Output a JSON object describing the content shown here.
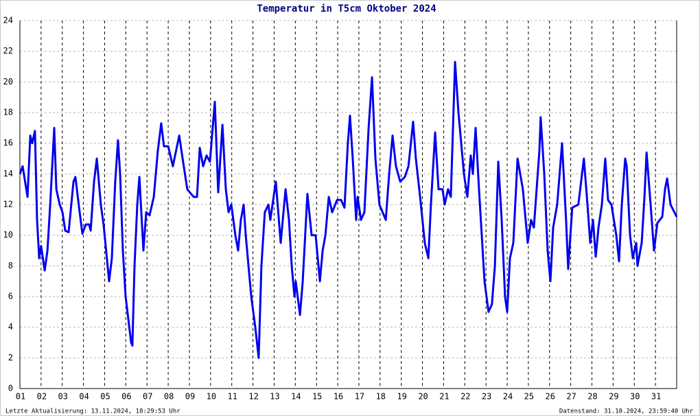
{
  "chart_data": {
    "type": "line",
    "title": "Temperatur in T5cm Oktober 2024",
    "footer_left": "Letzte Aktualisierung: 13.11.2024, 18:29:53 Uhr",
    "footer_right": "Datenstand: 31.10.2024, 23:59:40 Uhr",
    "xlim": [
      1,
      32
    ],
    "ylim": [
      0,
      24
    ],
    "grid": true,
    "yticks": [
      0,
      2,
      4,
      6,
      8,
      10,
      12,
      14,
      16,
      18,
      20,
      22,
      24
    ],
    "xticks": [
      {
        "value": 1,
        "label": "01"
      },
      {
        "value": 2,
        "label": "02"
      },
      {
        "value": 3,
        "label": "03"
      },
      {
        "value": 4,
        "label": "04"
      },
      {
        "value": 5,
        "label": "05"
      },
      {
        "value": 6,
        "label": "06"
      },
      {
        "value": 7,
        "label": "07"
      },
      {
        "value": 8,
        "label": "08"
      },
      {
        "value": 9,
        "label": "09"
      },
      {
        "value": 10,
        "label": "10"
      },
      {
        "value": 11,
        "label": "11"
      },
      {
        "value": 12,
        "label": "12"
      },
      {
        "value": 13,
        "label": "13"
      },
      {
        "value": 14,
        "label": "14"
      },
      {
        "value": 15,
        "label": "15"
      },
      {
        "value": 16,
        "label": "16"
      },
      {
        "value": 17,
        "label": "17"
      },
      {
        "value": 18,
        "label": "18"
      },
      {
        "value": 19,
        "label": "19"
      },
      {
        "value": 20,
        "label": "20"
      },
      {
        "value": 21,
        "label": "21"
      },
      {
        "value": 22,
        "label": "22"
      },
      {
        "value": 23,
        "label": "23"
      },
      {
        "value": 24,
        "label": "24"
      },
      {
        "value": 25,
        "label": "25"
      },
      {
        "value": 26,
        "label": "26"
      },
      {
        "value": 27,
        "label": "27"
      },
      {
        "value": 28,
        "label": "28"
      },
      {
        "value": 29,
        "label": "29"
      },
      {
        "value": 30,
        "label": "30"
      },
      {
        "value": 31,
        "label": "31"
      }
    ],
    "x": [
      1.0,
      1.13,
      1.36,
      1.49,
      1.58,
      1.71,
      1.81,
      1.91,
      2.0,
      2.17,
      2.3,
      2.43,
      2.62,
      2.72,
      2.88,
      3.01,
      3.14,
      3.3,
      3.53,
      3.62,
      3.82,
      3.95,
      4.11,
      4.27,
      4.34,
      4.5,
      4.63,
      4.82,
      4.95,
      5.21,
      5.34,
      5.5,
      5.63,
      5.73,
      5.86,
      5.99,
      6.25,
      6.31,
      6.41,
      6.54,
      6.64,
      6.83,
      6.96,
      7.12,
      7.32,
      7.51,
      7.67,
      7.8,
      8.0,
      8.22,
      8.52,
      8.68,
      8.9,
      9.2,
      9.36,
      9.49,
      9.65,
      9.81,
      9.97,
      10.2,
      10.36,
      10.56,
      10.72,
      10.85,
      10.98,
      11.17,
      11.3,
      11.43,
      11.56,
      11.66,
      11.79,
      11.92,
      12.11,
      12.27,
      12.4,
      12.56,
      12.73,
      12.82,
      13.08,
      13.31,
      13.54,
      13.7,
      13.83,
      13.96,
      14.02,
      14.22,
      14.35,
      14.57,
      14.77,
      14.96,
      15.16,
      15.29,
      15.42,
      15.58,
      15.74,
      15.97,
      16.16,
      16.32,
      16.48,
      16.58,
      16.71,
      16.87,
      16.94,
      17.1,
      17.26,
      17.46,
      17.62,
      17.78,
      17.97,
      18.27,
      18.43,
      18.59,
      18.75,
      18.95,
      19.17,
      19.34,
      19.56,
      19.69,
      19.89,
      20.11,
      20.28,
      20.4,
      20.6,
      20.76,
      20.95,
      21.05,
      21.21,
      21.34,
      21.54,
      21.7,
      21.96,
      22.12,
      22.28,
      22.38,
      22.51,
      22.67,
      22.8,
      22.93,
      23.12,
      23.28,
      23.42,
      23.58,
      23.74,
      23.9,
      24.0,
      24.13,
      24.29,
      24.49,
      24.74,
      24.97,
      25.13,
      25.26,
      25.52,
      25.58,
      25.75,
      25.91,
      26.04,
      26.17,
      26.36,
      26.59,
      26.78,
      26.88,
      27.07,
      27.36,
      27.62,
      27.79,
      27.92,
      28.05,
      28.18,
      28.31,
      28.47,
      28.63,
      28.76,
      28.92,
      29.15,
      29.28,
      29.41,
      29.57,
      29.64,
      29.8,
      29.93,
      30.09,
      30.15,
      30.35,
      30.48,
      30.58,
      30.77,
      30.93,
      31.09,
      31.32,
      31.45,
      31.55,
      31.71,
      32.0
    ],
    "series": [
      {
        "color": "#0000ee",
        "values": [
          14,
          14.5,
          12.5,
          16.5,
          16,
          16.8,
          11,
          8.5,
          9.3,
          7.7,
          9,
          12,
          17,
          13,
          12,
          11.5,
          10.3,
          10.2,
          13.5,
          13.8,
          11.5,
          10.1,
          10.7,
          10.7,
          10.3,
          13.5,
          15,
          12,
          10.7,
          7,
          8.5,
          13.5,
          16.2,
          14,
          9,
          6,
          3,
          2.8,
          8,
          12,
          13.8,
          9,
          11.5,
          11.3,
          12.5,
          15.5,
          17.3,
          15.8,
          15.8,
          14.5,
          16.5,
          15,
          13,
          12.5,
          12.5,
          15.7,
          14.5,
          15.2,
          14.8,
          18.7,
          12.8,
          17.2,
          13,
          11.5,
          12,
          10,
          9,
          11,
          12,
          10,
          8,
          6,
          4,
          2,
          8,
          11.5,
          12,
          11,
          13.5,
          9.5,
          13,
          11,
          8,
          6,
          7,
          4.8,
          7,
          12.7,
          10,
          10,
          7,
          9,
          10,
          12.5,
          11.5,
          12.3,
          12.3,
          11.8,
          16,
          17.8,
          15,
          11,
          12.5,
          11,
          11.5,
          17,
          20.3,
          15,
          12,
          11,
          14,
          16.5,
          14.5,
          13.5,
          13.8,
          14.5,
          17.4,
          15,
          12.5,
          9.5,
          8.5,
          12,
          16.7,
          13,
          13,
          12,
          13,
          12.5,
          21.3,
          18,
          14,
          12.5,
          15.2,
          14,
          17,
          13,
          10,
          7,
          5,
          5.5,
          8,
          14.8,
          11,
          6,
          5,
          8.5,
          9.5,
          15,
          13,
          9.5,
          11,
          10.5,
          15.5,
          17.7,
          14,
          9,
          7,
          10.5,
          12,
          16,
          11,
          7.8,
          11.8,
          12,
          15,
          12,
          9.5,
          11,
          8.6,
          10.5,
          12,
          15,
          12.3,
          12,
          10,
          8.3,
          12,
          15,
          14.5,
          10,
          8.5,
          9.5,
          8,
          9.5,
          12.5,
          15.4,
          12,
          9,
          10.8,
          11.2,
          13,
          13.7,
          12,
          11.2
        ]
      }
    ]
  }
}
